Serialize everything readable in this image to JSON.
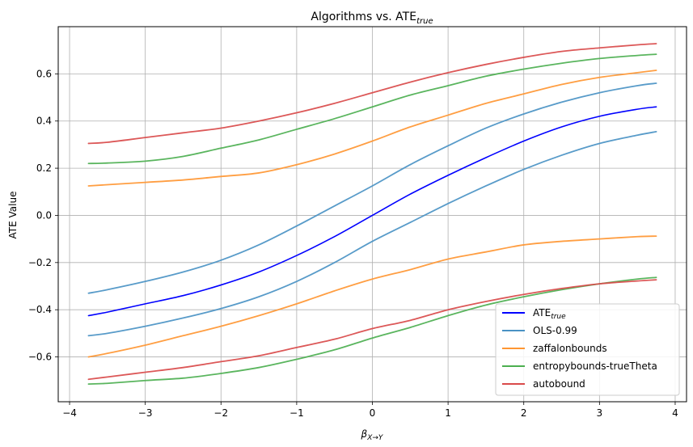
{
  "chart_data": {
    "type": "line",
    "title": "Algorithms vs. ATE",
    "title_sub": "true",
    "xlabel": "β",
    "xlabel_sub": "X→Y",
    "ylabel": "ATE Value",
    "xlim": [
      -4.15,
      4.15
    ],
    "ylim": [
      -0.79,
      0.8
    ],
    "xticks": [
      -4,
      -3,
      -2,
      -1,
      0,
      1,
      2,
      3,
      4
    ],
    "yticks": [
      -0.6,
      -0.4,
      -0.2,
      0.0,
      0.2,
      0.4,
      0.6
    ],
    "ytick_labels": [
      "−0.6",
      "−0.4",
      "−0.2",
      "0.0",
      "0.2",
      "0.4",
      "0.6"
    ],
    "xtick_labels": [
      "−4",
      "−3",
      "−2",
      "−1",
      "0",
      "1",
      "2",
      "3",
      "4"
    ],
    "grid": true,
    "legend_position": "bottom-right",
    "x": [
      -3.75,
      -3.5,
      -3.0,
      -2.5,
      -2.0,
      -1.5,
      -1.0,
      -0.5,
      0.0,
      0.5,
      1.0,
      1.5,
      2.0,
      2.5,
      3.0,
      3.5,
      3.75
    ],
    "series": [
      {
        "name": "ATE",
        "name_sub": "true",
        "color": "#0000ff",
        "values": [
          -0.425,
          -0.41,
          -0.375,
          -0.34,
          -0.295,
          -0.24,
          -0.17,
          -0.09,
          0.0,
          0.09,
          0.17,
          0.245,
          0.315,
          0.375,
          0.42,
          0.45,
          0.46
        ]
      },
      {
        "name": "OLS-0.99",
        "color": "#4a92c4",
        "lines": [
          [
            -0.33,
            -0.315,
            -0.28,
            -0.24,
            -0.19,
            -0.125,
            -0.045,
            0.04,
            0.125,
            0.215,
            0.295,
            0.37,
            0.43,
            0.48,
            0.52,
            0.55,
            0.56
          ],
          [
            -0.51,
            -0.5,
            -0.47,
            -0.435,
            -0.395,
            -0.345,
            -0.28,
            -0.2,
            -0.11,
            -0.03,
            0.05,
            0.125,
            0.195,
            0.255,
            0.305,
            0.34,
            0.355
          ]
        ]
      },
      {
        "name": "zaffalonbounds",
        "color": "#ff9632",
        "lines": [
          [
            0.125,
            0.13,
            0.14,
            0.15,
            0.165,
            0.18,
            0.215,
            0.26,
            0.315,
            0.375,
            0.425,
            0.475,
            0.515,
            0.555,
            0.585,
            0.605,
            0.615
          ],
          [
            -0.6,
            -0.585,
            -0.55,
            -0.51,
            -0.47,
            -0.425,
            -0.375,
            -0.32,
            -0.27,
            -0.23,
            -0.185,
            -0.155,
            -0.125,
            -0.11,
            -0.1,
            -0.09,
            -0.088
          ]
        ]
      },
      {
        "name": "entropybounds-trueTheta",
        "color": "#4caf50",
        "lines": [
          [
            0.22,
            0.222,
            0.23,
            0.25,
            0.285,
            0.32,
            0.365,
            0.41,
            0.46,
            0.51,
            0.55,
            0.59,
            0.62,
            0.645,
            0.665,
            0.678,
            0.683
          ],
          [
            -0.715,
            -0.712,
            -0.7,
            -0.69,
            -0.67,
            -0.645,
            -0.61,
            -0.57,
            -0.52,
            -0.475,
            -0.425,
            -0.38,
            -0.345,
            -0.315,
            -0.29,
            -0.27,
            -0.263
          ]
        ]
      },
      {
        "name": "autobound",
        "color": "#d94a4a",
        "lines": [
          [
            0.305,
            0.31,
            0.33,
            0.35,
            0.37,
            0.4,
            0.435,
            0.475,
            0.52,
            0.565,
            0.605,
            0.64,
            0.67,
            0.695,
            0.71,
            0.723,
            0.728
          ],
          [
            -0.695,
            -0.685,
            -0.665,
            -0.645,
            -0.62,
            -0.595,
            -0.56,
            -0.525,
            -0.48,
            -0.445,
            -0.4,
            -0.365,
            -0.335,
            -0.31,
            -0.29,
            -0.278,
            -0.273
          ]
        ]
      }
    ]
  }
}
